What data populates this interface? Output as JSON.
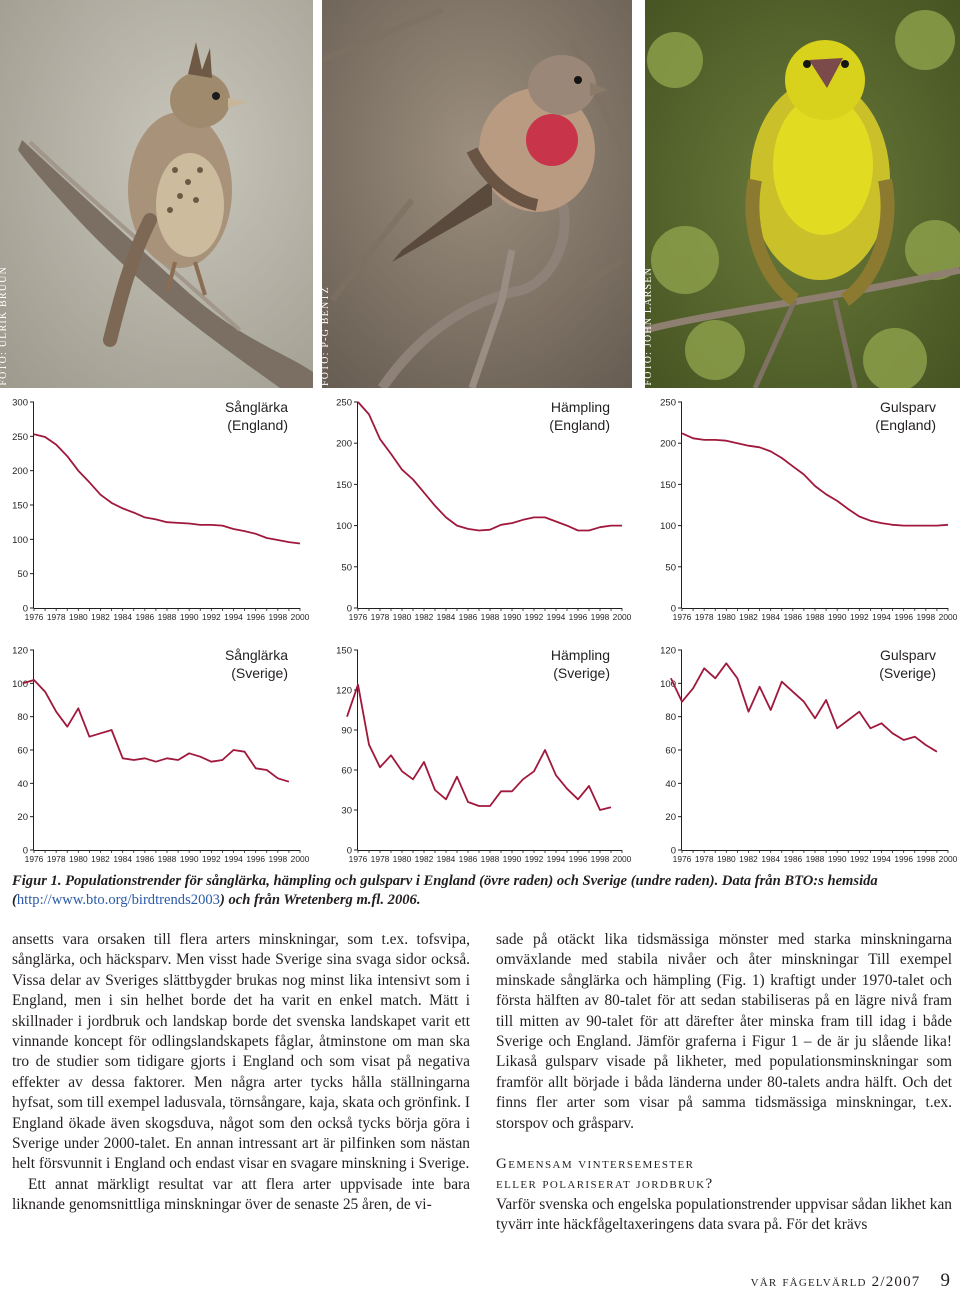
{
  "photos": [
    {
      "credit": "Foto: Ulrik Bruun"
    },
    {
      "credit": "Foto: P-G Bentz"
    },
    {
      "credit": "Foto: John Larsen"
    }
  ],
  "colors": {
    "line": "#a0183c",
    "axis": "#231f20"
  },
  "chart_data": [
    {
      "type": "line",
      "title": "Sånglärka",
      "subtitle": "(England)",
      "ylim": [
        0,
        300
      ],
      "yticks": [
        0,
        50,
        100,
        150,
        200,
        250,
        300
      ],
      "x": [
        1976,
        1977,
        1978,
        1979,
        1980,
        1981,
        1982,
        1983,
        1984,
        1985,
        1986,
        1987,
        1988,
        1989,
        1990,
        1991,
        1992,
        1993,
        1994,
        1995,
        1996,
        1997,
        1998,
        1999,
        2000
      ],
      "values": [
        253,
        249,
        238,
        221,
        200,
        183,
        165,
        153,
        145,
        139,
        132,
        129,
        125,
        124,
        123,
        121,
        121,
        120,
        115,
        112,
        108,
        102,
        99,
        96,
        94
      ]
    },
    {
      "type": "line",
      "title": "Hämpling",
      "subtitle": "(England)",
      "ylim": [
        0,
        250
      ],
      "yticks": [
        0,
        50,
        100,
        150,
        200,
        250
      ],
      "x": [
        1976,
        1977,
        1978,
        1979,
        1980,
        1981,
        1982,
        1983,
        1984,
        1985,
        1986,
        1987,
        1988,
        1989,
        1990,
        1991,
        1992,
        1993,
        1994,
        1995,
        1996,
        1997,
        1998,
        1999,
        2000
      ],
      "values": [
        250,
        235,
        205,
        187,
        168,
        156,
        140,
        124,
        110,
        100,
        96,
        94,
        95,
        101,
        103,
        107,
        110,
        110,
        105,
        100,
        94,
        94,
        98,
        100,
        100
      ]
    },
    {
      "type": "line",
      "title": "Gulsparv",
      "subtitle": "(England)",
      "ylim": [
        0,
        250
      ],
      "yticks": [
        0,
        50,
        100,
        150,
        200,
        250
      ],
      "x": [
        1976,
        1977,
        1978,
        1979,
        1980,
        1981,
        1982,
        1983,
        1984,
        1985,
        1986,
        1987,
        1988,
        1989,
        1990,
        1991,
        1992,
        1993,
        1994,
        1995,
        1996,
        1997,
        1998,
        1999,
        2000
      ],
      "values": [
        212,
        206,
        204,
        204,
        203,
        200,
        197,
        195,
        190,
        182,
        172,
        162,
        148,
        138,
        130,
        120,
        111,
        106,
        103,
        101,
        100,
        100,
        100,
        100,
        101
      ]
    },
    {
      "type": "line",
      "title": "Sånglärka",
      "subtitle": "(Sverige)",
      "ylim": [
        0,
        120
      ],
      "yticks": [
        0,
        20,
        40,
        60,
        80,
        100,
        120
      ],
      "x": [
        1975,
        1976,
        1977,
        1978,
        1979,
        1980,
        1981,
        1982,
        1983,
        1984,
        1985,
        1986,
        1987,
        1988,
        1989,
        1990,
        1991,
        1992,
        1993,
        1994,
        1995,
        1996,
        1997,
        1998,
        1999
      ],
      "values": [
        100,
        102,
        95,
        83,
        74,
        85,
        68,
        70,
        72,
        55,
        54,
        55,
        53,
        55,
        54,
        58,
        56,
        53,
        54,
        60,
        59,
        49,
        48,
        43,
        41
      ]
    },
    {
      "type": "line",
      "title": "Hämpling",
      "subtitle": "(Sverige)",
      "ylim": [
        0,
        150
      ],
      "yticks": [
        0,
        30,
        60,
        90,
        120,
        150
      ],
      "x": [
        1975,
        1976,
        1977,
        1978,
        1979,
        1980,
        1981,
        1982,
        1983,
        1984,
        1985,
        1986,
        1987,
        1988,
        1989,
        1990,
        1991,
        1992,
        1993,
        1994,
        1995,
        1996,
        1997,
        1998,
        1999
      ],
      "values": [
        100,
        124,
        79,
        62,
        71,
        59,
        53,
        66,
        45,
        38,
        55,
        36,
        33,
        33,
        44,
        44,
        53,
        59,
        75,
        56,
        46,
        38,
        48,
        30,
        32
      ]
    },
    {
      "type": "line",
      "title": "Gulsparv",
      "subtitle": "(Sverige)",
      "ylim": [
        0,
        120
      ],
      "yticks": [
        0,
        20,
        40,
        60,
        80,
        100,
        120
      ],
      "x": [
        1975,
        1976,
        1977,
        1978,
        1979,
        1980,
        1981,
        1982,
        1983,
        1984,
        1985,
        1986,
        1987,
        1988,
        1989,
        1990,
        1991,
        1992,
        1993,
        1994,
        1995,
        1996,
        1997,
        1998,
        1999
      ],
      "values": [
        103,
        89,
        97,
        109,
        103,
        112,
        103,
        83,
        98,
        84,
        101,
        95,
        89,
        79,
        90,
        73,
        78,
        83,
        73,
        76,
        70,
        66,
        68,
        63,
        59
      ]
    }
  ],
  "xtick_labels": [
    "1976",
    "1978",
    "1980",
    "1982",
    "1984",
    "1986",
    "1988",
    "1990",
    "1992",
    "1994",
    "1996",
    "1998",
    "2000"
  ],
  "caption": {
    "text": "Figur 1. Populationstrender för sånglärka, hämpling och gulsparv i England (övre raden) och Sverige (undre raden). Data från BTO:s hemsida (",
    "link": "http://www.bto.org/birdtrends2003",
    "text_after": ") och från Wretenberg m.fl. 2006."
  },
  "body": {
    "left_paragraphs": [
      "ansetts vara orsaken till flera arters minskningar, som t.ex. tofsvipa, sånglärka, och häcksparv. Men visst hade Sverige sina svaga sidor också. Vissa delar av Sveriges slättbygder brukas nog minst lika intensivt som i England, men i sin helhet borde det ha varit en enkel match. Mätt i skillnader i jordbruk och landskap borde det svenska landskapet varit ett vinnande koncept för odlingslandskapets fåglar, åtminstone om man ska tro de studier som tidigare gjorts i England och som visat på negativa effekter av dessa faktorer. Men några arter tycks hålla ställningarna hyfsat, som till exempel ladusvala, törnsångare, kaja, skata och grönfink. I England ökade även skogsduva, något som den också tycks börja göra i Sverige under 2000-talet. En annan intressant art är pilfinken som nästan helt försvunnit i England och endast visar en svagare minskning i Sverige.",
      "Ett annat märkligt resultat var att flera arter uppvisade inte bara liknande genomsnittliga minskningar över de senaste 25 åren, de vi-"
    ],
    "right_paragraph": "sade på otäckt lika tidsmässiga mönster med starka minskningarna omväxlande med stabila nivåer och åter minskningar Till exempel minskade sånglärka och hämpling (Fig. 1) kraftigt under 1970-talet och första hälften av 80-talet för att sedan stabiliseras på en lägre nivå fram till mitten av 90-talet för att därefter åter minska fram till idag i både Sverige och England. Jämför graferna i Figur 1 – de är ju slående lika! Likaså gulsparv visade på likheter, med populationsminskningar som framför allt började i båda länderna under 80-talets andra hälft. Och det finns fler arter som visar på samma tidsmässiga minskningar, t.ex. storspov och gråsparv.",
    "heading_line1": "Gemensam vintersemester",
    "heading_line2": "eller polariserat jordbruk?",
    "right_paragraph2": "Varför svenska och engelska populationstrender uppvisar sådan likhet kan tyvärr inte häckfågeltaxeringens data svara på. För det krävs"
  },
  "footer": {
    "magazine": "vår fågelvärld 2/2007",
    "page": "9"
  }
}
